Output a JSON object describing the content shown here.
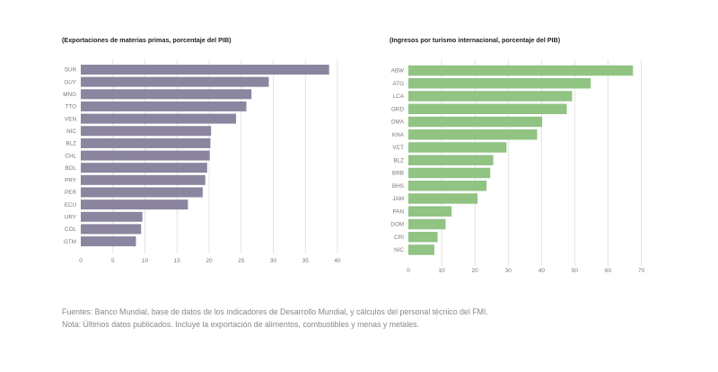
{
  "chart_data": [
    {
      "type": "bar",
      "orientation": "horizontal",
      "title": "(Exportaciones de materias primas, porcentaje del PIB)",
      "categories": [
        "SUR",
        "GUY",
        "MNG",
        "TTO",
        "VEN",
        "NIC",
        "BLZ",
        "CHL",
        "BOL",
        "PRY",
        "PER",
        "ECU",
        "URY",
        "COL",
        "GTM"
      ],
      "values": [
        38.7,
        29.3,
        26.6,
        25.8,
        24.2,
        20.3,
        20.2,
        20.1,
        19.7,
        19.4,
        19.0,
        16.7,
        9.6,
        9.4,
        8.6
      ],
      "xlim": [
        0,
        40
      ],
      "xticks": [
        0,
        5,
        10,
        15,
        20,
        25,
        30,
        35,
        40
      ],
      "color": "#8b85a0",
      "xlabel": "",
      "ylabel": ""
    },
    {
      "type": "bar",
      "orientation": "horizontal",
      "title": "(Ingresos por turismo internacional, porcentaje del PIB)",
      "categories": [
        "ABW",
        "ATG",
        "LCA",
        "GRD",
        "DMA",
        "KNA",
        "VCT",
        "BLZ",
        "BRB",
        "BHS",
        "JAM",
        "PAN",
        "DOM",
        "CRI",
        "NIC"
      ],
      "values": [
        67.5,
        54.8,
        49.2,
        47.6,
        40.2,
        38.7,
        29.5,
        25.5,
        24.6,
        23.5,
        20.8,
        13.0,
        11.2,
        8.8,
        7.8
      ],
      "xlim": [
        0,
        72
      ],
      "xticks": [
        0,
        10,
        20,
        30,
        40,
        50,
        60,
        70
      ],
      "color": "#91c383",
      "xlabel": "",
      "ylabel": ""
    }
  ],
  "footer": {
    "line1": "Fuentes: Banco Mundial, base de datos de los indicadores de Desarrollo Mundial, y cálculos del personal técnico del FMI.",
    "line2": "Nota: Últimos datos publicados. Incluye la exportación de alimentos, combustibles y menas y metales."
  }
}
